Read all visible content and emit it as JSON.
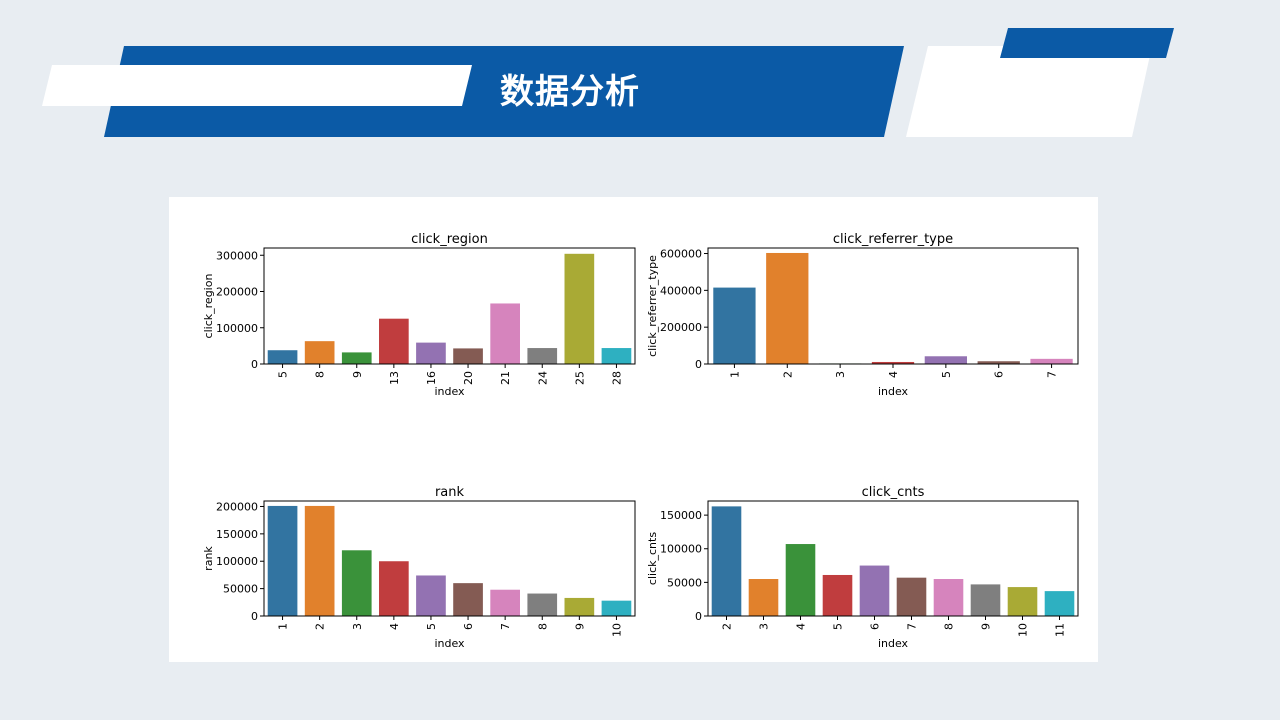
{
  "header": {
    "title": "数据分析"
  },
  "chart_data": [
    {
      "type": "bar",
      "title": "click_region",
      "xlabel": "index",
      "ylabel": "click_region",
      "categories": [
        "5",
        "8",
        "9",
        "13",
        "16",
        "20",
        "21",
        "24",
        "25",
        "28"
      ],
      "values": [
        38000,
        63000,
        32000,
        125000,
        59000,
        43000,
        167000,
        44000,
        304000,
        44000
      ],
      "ylim": [
        0,
        320000
      ],
      "yticks": [
        0,
        100000,
        200000,
        300000
      ]
    },
    {
      "type": "bar",
      "title": "click_referrer_type",
      "xlabel": "index",
      "ylabel": "click_referrer_type",
      "categories": [
        "1",
        "2",
        "3",
        "4",
        "5",
        "6",
        "7"
      ],
      "values": [
        415000,
        603000,
        3000,
        11000,
        42000,
        15000,
        28000
      ],
      "ylim": [
        0,
        630000
      ],
      "yticks": [
        0,
        200000,
        400000,
        600000
      ]
    },
    {
      "type": "bar",
      "title": "rank",
      "xlabel": "index",
      "ylabel": "rank",
      "categories": [
        "1",
        "2",
        "3",
        "4",
        "5",
        "6",
        "7",
        "8",
        "9",
        "10"
      ],
      "values": [
        201000,
        201000,
        120000,
        100000,
        74000,
        60000,
        48000,
        41000,
        33000,
        28000
      ],
      "ylim": [
        0,
        210000
      ],
      "yticks": [
        0,
        50000,
        100000,
        150000,
        200000
      ]
    },
    {
      "type": "bar",
      "title": "click_cnts",
      "xlabel": "index",
      "ylabel": "click_cnts",
      "categories": [
        "2",
        "3",
        "4",
        "5",
        "6",
        "7",
        "8",
        "9",
        "10",
        "11"
      ],
      "values": [
        163000,
        55000,
        107000,
        61000,
        75000,
        57000,
        55000,
        47000,
        43000,
        37000
      ],
      "ylim": [
        0,
        171000
      ],
      "yticks": [
        0,
        50000,
        100000,
        150000
      ]
    }
  ],
  "colors": [
    "#3274a1",
    "#e1812c",
    "#3a923a",
    "#c03d3e",
    "#9372b2",
    "#845b53",
    "#d684bd",
    "#7f7f7f",
    "#a9aa35",
    "#2eb0c1"
  ]
}
